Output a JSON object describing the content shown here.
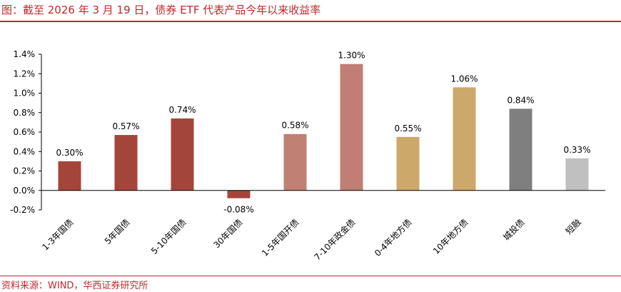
{
  "figure_title": "图：截至 2026 年 3 月 19 日，债券 ETF 代表产品今年以来收益率",
  "source_note": "资料来源：WIND，华西证券研究所",
  "colors": {
    "accent": "#c0282d",
    "dark_red": "#a5453a",
    "light_red": "#c18074",
    "rose": "#c07e74",
    "gold": "#cca86b",
    "gray": "#7f7f7f",
    "light_gray": "#c0c0c0"
  },
  "chart_data": {
    "type": "bar",
    "categories": [
      "1-3年国债",
      "5年国债",
      "5-10年国债",
      "30年国债",
      "1-5年国开债",
      "7-10年政金债",
      "0-4年地方债",
      "10年地方债",
      "城投债",
      "短融"
    ],
    "values": [
      0.3,
      0.57,
      0.74,
      -0.08,
      0.58,
      1.3,
      0.55,
      1.06,
      0.84,
      0.33
    ],
    "value_labels": [
      "0.30%",
      "0.57%",
      "0.74%",
      "-0.08%",
      "0.58%",
      "1.30%",
      "0.55%",
      "1.06%",
      "0.84%",
      "0.33%"
    ],
    "bar_colors": [
      "#a5453a",
      "#a5453a",
      "#a5453a",
      "#a5453a",
      "#c18074",
      "#c07e74",
      "#cca86b",
      "#cca86b",
      "#7f7f7f",
      "#c0c0c0"
    ],
    "ylim": [
      -0.2,
      1.4
    ],
    "yticks": [
      -0.2,
      0.0,
      0.2,
      0.4,
      0.6,
      0.8,
      1.0,
      1.2,
      1.4
    ],
    "ytick_labels": [
      "-0.2%",
      "0.0%",
      "0.2%",
      "0.4%",
      "0.6%",
      "0.8%",
      "1.0%",
      "1.2%",
      "1.4%"
    ],
    "grid": false,
    "legend": "none",
    "xlabel": "",
    "ylabel": ""
  }
}
